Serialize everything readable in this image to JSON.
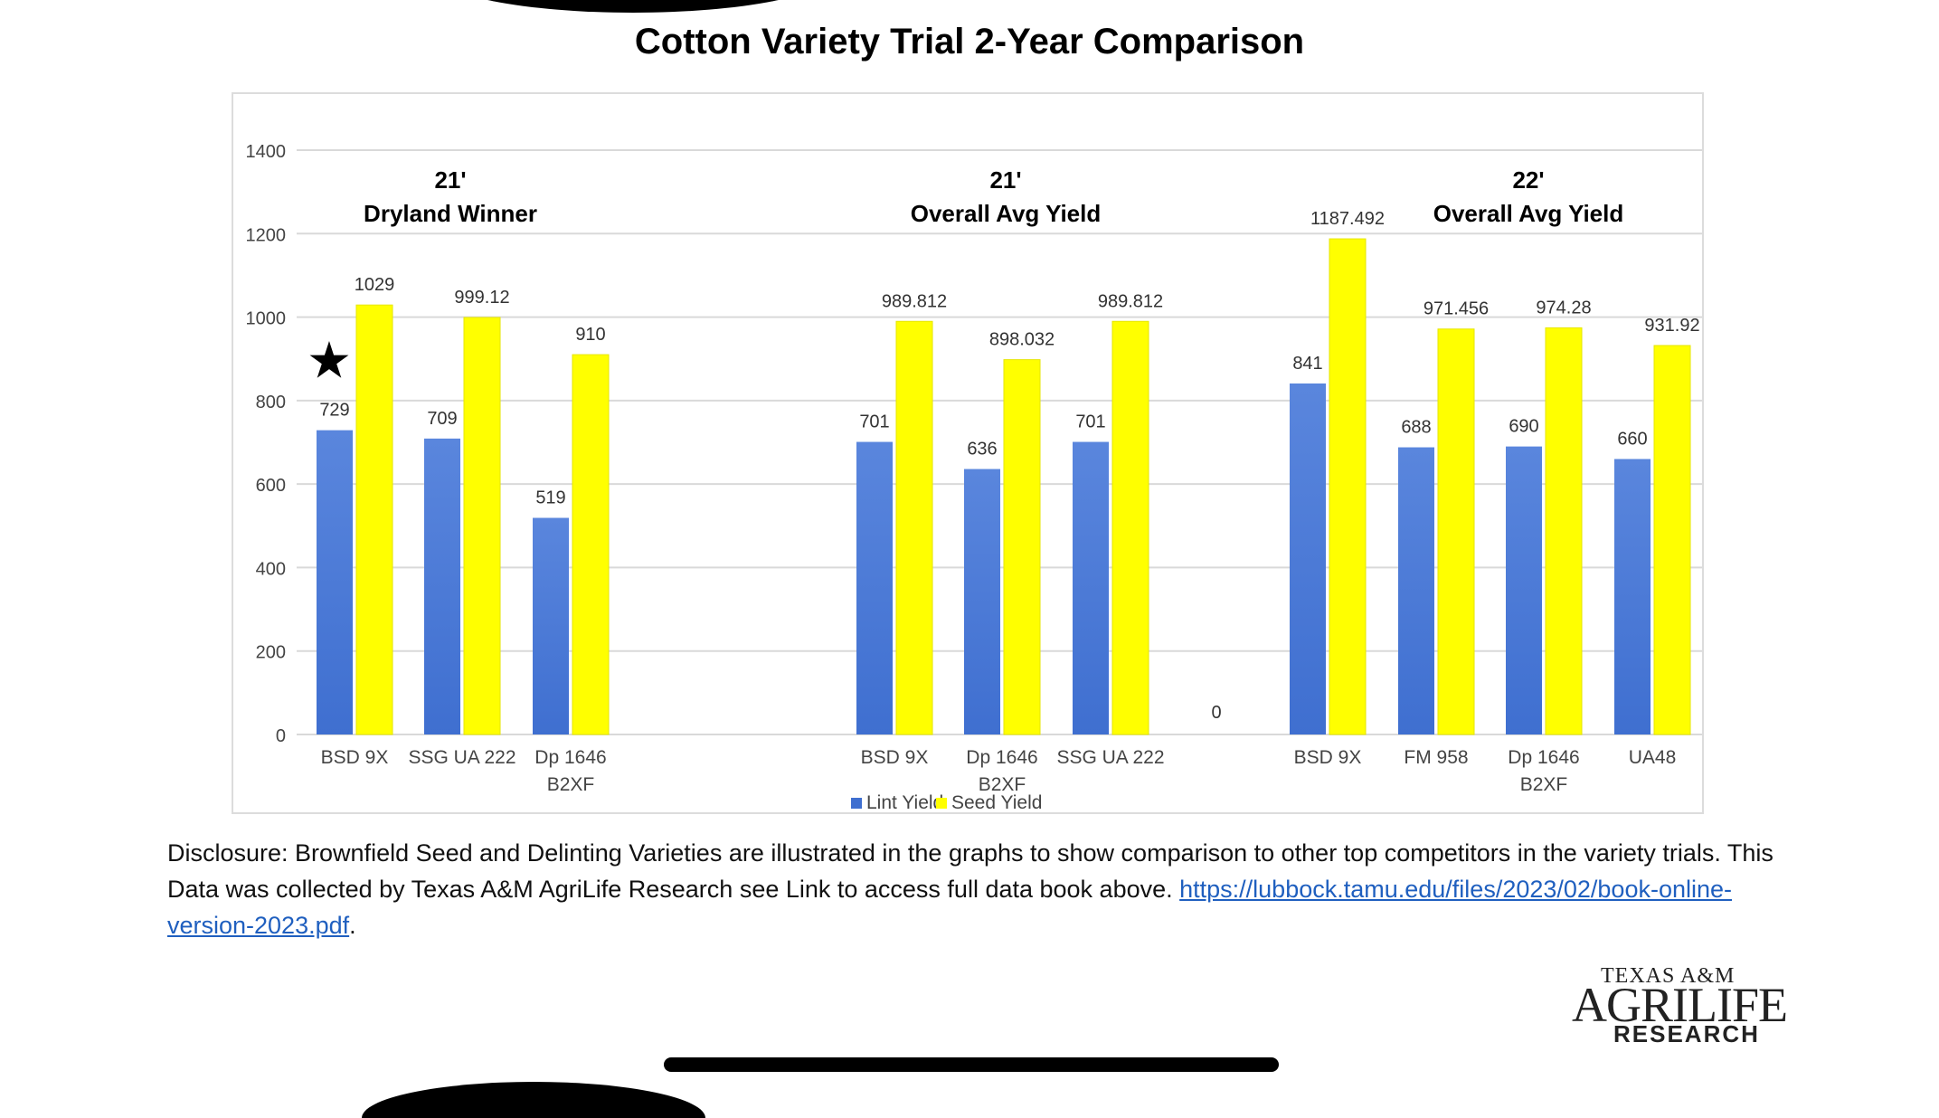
{
  "title": "Cotton Variety Trial 2-Year Comparison",
  "chart_data": {
    "type": "bar",
    "ylim": [
      0,
      1400
    ],
    "yticks": [
      "0",
      "200",
      "400",
      "600",
      "800",
      "1000",
      "1200",
      "1400"
    ],
    "grid": true,
    "legend_position": "bottom",
    "series": [
      {
        "name": "Lint Yield",
        "color": "#3f6fd0"
      },
      {
        "name": "Seed Yield",
        "color": "#ffff00"
      }
    ],
    "groups": [
      {
        "title_line1": "21'",
        "title_line2": "Dryland Winner",
        "categories": [
          {
            "label": [
              "BSD 9X"
            ],
            "lint": 729,
            "lint_label": "729",
            "seed": 1029,
            "seed_label": "1029",
            "star": true
          },
          {
            "label": [
              "SSG UA 222"
            ],
            "lint": 709,
            "lint_label": "709",
            "seed": 999.12,
            "seed_label": "999.12"
          },
          {
            "label": [
              "Dp 1646",
              "B2XF"
            ],
            "lint": 519,
            "lint_label": "519",
            "seed": 910,
            "seed_label": "910"
          }
        ]
      },
      {
        "title_line1": "21'",
        "title_line2": "Overall Avg Yield",
        "categories": [
          {
            "label": [
              "BSD 9X"
            ],
            "lint": 701,
            "lint_label": "701",
            "seed": 989.812,
            "seed_label": "989.812"
          },
          {
            "label": [
              "Dp 1646",
              "B2XF"
            ],
            "lint": 636,
            "lint_label": "636",
            "seed": 898.032,
            "seed_label": "898.032"
          },
          {
            "label": [
              "SSG UA 222"
            ],
            "lint": 701,
            "lint_label": "701",
            "seed": 989.812,
            "seed_label": "989.812"
          }
        ]
      },
      {
        "title_line1": "22'",
        "title_line2": "Overall Avg Yield",
        "categories": [
          {
            "label": [
              "BSD 9X"
            ],
            "lint": 841,
            "lint_label": "841",
            "seed": 1187.492,
            "seed_label": "1187.492"
          },
          {
            "label": [
              "FM 958"
            ],
            "lint": 688,
            "lint_label": "688",
            "seed": 971.456,
            "seed_label": "971.456"
          },
          {
            "label": [
              "Dp 1646",
              "B2XF"
            ],
            "lint": 690,
            "lint_label": "690",
            "seed": 974.28,
            "seed_label": "974.28"
          },
          {
            "label": [
              "UA48"
            ],
            "lint": 660,
            "lint_label": "660",
            "seed": 931.92,
            "seed_label": "931.92"
          }
        ]
      }
    ],
    "stray_label": "0"
  },
  "disclosure": {
    "text": "Disclosure: Brownfield Seed and Delinting Varieties are illustrated in the graphs to show comparison to other top competitors in the variety trials. This Data was collected by Texas A&M AgriLife Research see Link to access full data book above. ",
    "link": "https://lubbock.tamu.edu/files/2023/02/book-online-version-2023.pdf",
    "tail": "."
  },
  "logo": {
    "line1": "TEXAS A&M",
    "line2": "AGRILIFE",
    "line3": "RESEARCH"
  }
}
